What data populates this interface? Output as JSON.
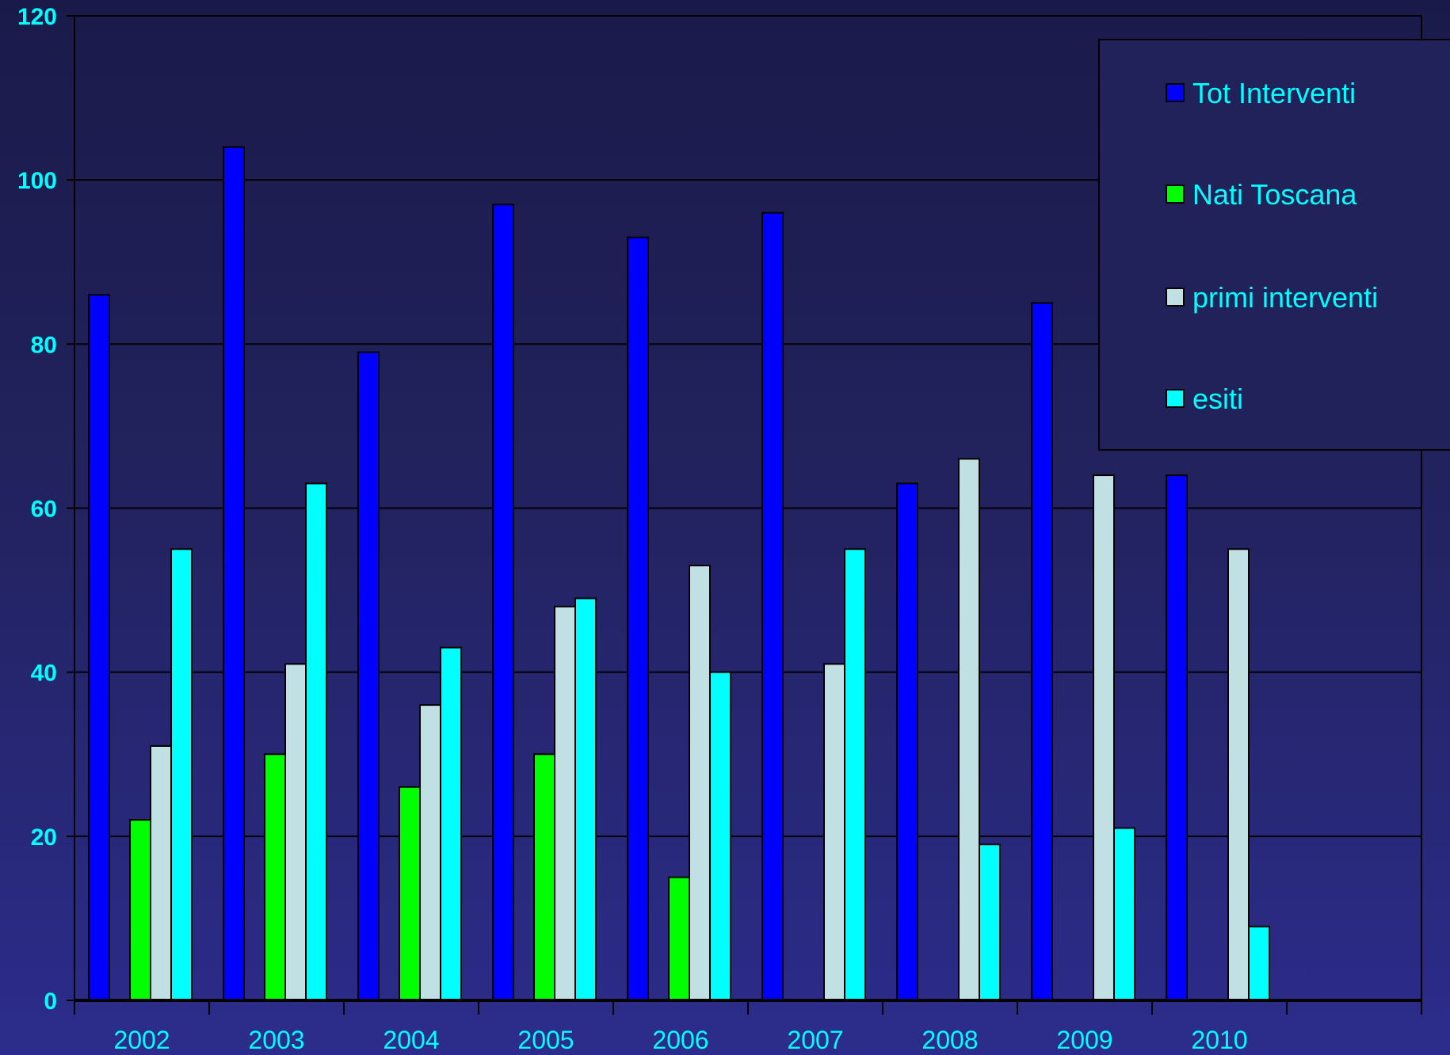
{
  "chart_data": {
    "type": "bar",
    "title": "",
    "xlabel": "",
    "ylabel": "",
    "ylim": [
      0,
      120
    ],
    "yticks": [
      0,
      20,
      40,
      60,
      80,
      100,
      120
    ],
    "categories": [
      "2002",
      "2003",
      "2004",
      "2005",
      "2006",
      "2007",
      "2008",
      "2009",
      "2010"
    ],
    "grid": true,
    "legend_position": "top-right",
    "series": [
      {
        "name": "Tot Interventi",
        "color": "#0000ff",
        "values": [
          86,
          104,
          79,
          97,
          93,
          96,
          63,
          85,
          64
        ]
      },
      {
        "name": "Nati Toscana",
        "color": "#00ff00",
        "values": [
          22,
          30,
          26,
          30,
          15,
          0,
          0,
          0,
          0
        ]
      },
      {
        "name": "primi interventi",
        "color": "#c0e0e4",
        "values": [
          31,
          41,
          36,
          48,
          53,
          41,
          66,
          64,
          55
        ]
      },
      {
        "name": "esiti",
        "color": "#00ffff",
        "values": [
          55,
          63,
          43,
          49,
          40,
          55,
          19,
          21,
          9
        ]
      }
    ]
  },
  "colors": {
    "text": "#00ffff",
    "gridline": "#000000",
    "legend_bg": "#22225a"
  }
}
